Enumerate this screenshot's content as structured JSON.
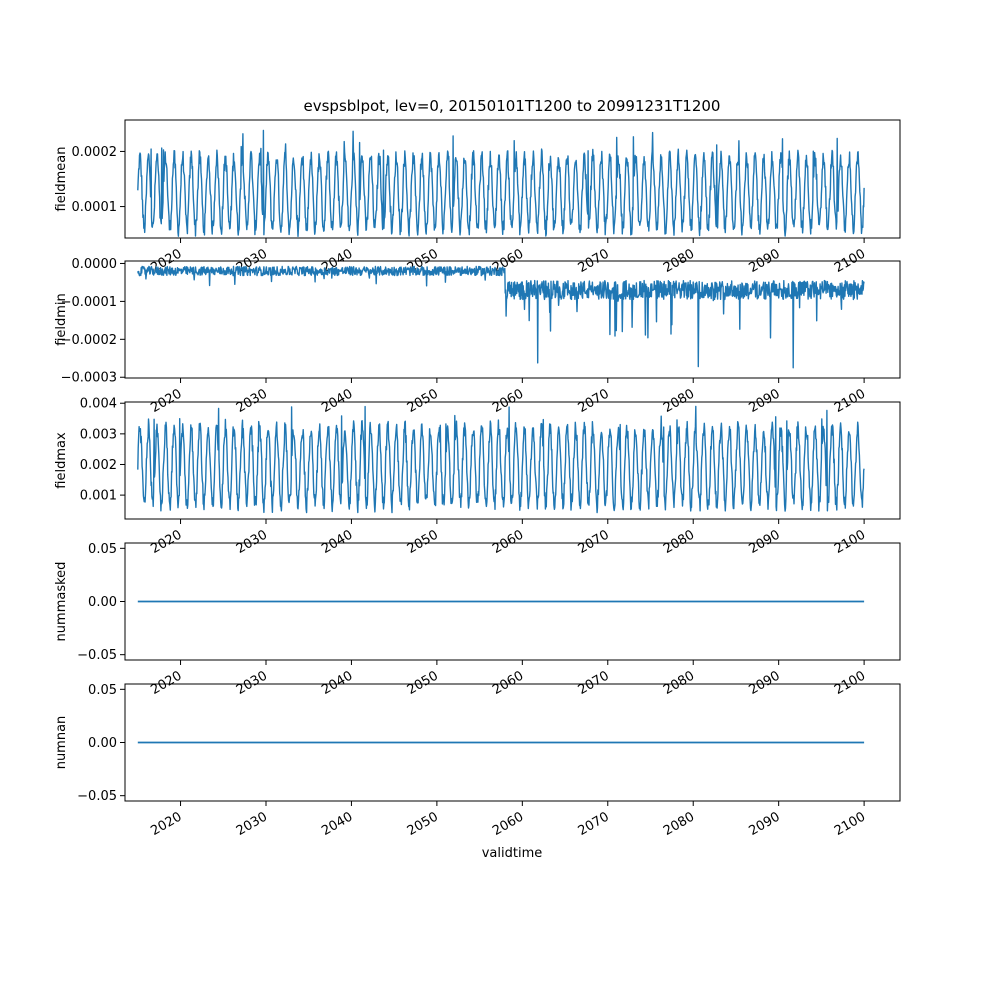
{
  "chart_data": {
    "type": "line",
    "title": "evspsblpot, lev=0, 20150101T1200 to 20991231T1200",
    "xlabel": "validtime",
    "line_color": "#1f77b4",
    "x_range": [
      "2015-01-01",
      "2099-12-31"
    ],
    "xlim": [
      2013.5,
      2104.2
    ],
    "x_ticks": [
      2020,
      2030,
      2040,
      2050,
      2060,
      2070,
      2080,
      2090,
      2100
    ],
    "x_tick_labels": [
      "2020",
      "2030",
      "2040",
      "2050",
      "2060",
      "2070",
      "2080",
      "2090",
      "2100"
    ],
    "panels": [
      {
        "ylabel": "fieldmean",
        "ylim": [
          4.3e-05,
          0.000257
        ],
        "y_ticks": [
          0.0001,
          0.0002
        ],
        "y_tick_labels": [
          "0.0001",
          "0.0002"
        ],
        "series": {
          "kind": "seasonal",
          "low": 6e-05,
          "high": 0.00019,
          "spike_max": 0.00024
        }
      },
      {
        "ylabel": "fieldmin",
        "ylim": [
          -0.000302,
          6.5e-06
        ],
        "y_ticks": [
          0.0,
          -0.0001,
          -0.0002,
          -0.0003
        ],
        "y_tick_labels": [
          "0.0000",
          "−0.0001",
          "−0.0002",
          "−0.0003"
        ],
        "series": {
          "kind": "regime",
          "break_year": 2058,
          "level_before": -2e-05,
          "level_after": -7e-05,
          "min": -0.00029
        }
      },
      {
        "ylabel": "fieldmax",
        "ylim": [
          0.00022,
          0.00404
        ],
        "y_ticks": [
          0.001,
          0.002,
          0.003,
          0.004
        ],
        "y_tick_labels": [
          "0.001",
          "0.002",
          "0.003",
          "0.004"
        ],
        "series": {
          "kind": "seasonal",
          "low": 0.0007,
          "high": 0.0032,
          "spike_max": 0.0039
        }
      },
      {
        "ylabel": "nummasked",
        "ylim": [
          -0.055,
          0.055
        ],
        "y_ticks": [
          0.05,
          0.0,
          -0.05
        ],
        "y_tick_labels": [
          "0.05",
          "0.00",
          "−0.05"
        ],
        "series": {
          "kind": "constant",
          "value": 0.0
        }
      },
      {
        "ylabel": "numnan",
        "ylim": [
          -0.055,
          0.055
        ],
        "y_ticks": [
          0.05,
          0.0,
          -0.05
        ],
        "y_tick_labels": [
          "0.05",
          "0.00",
          "−0.05"
        ],
        "series": {
          "kind": "constant",
          "value": 0.0
        }
      }
    ]
  }
}
